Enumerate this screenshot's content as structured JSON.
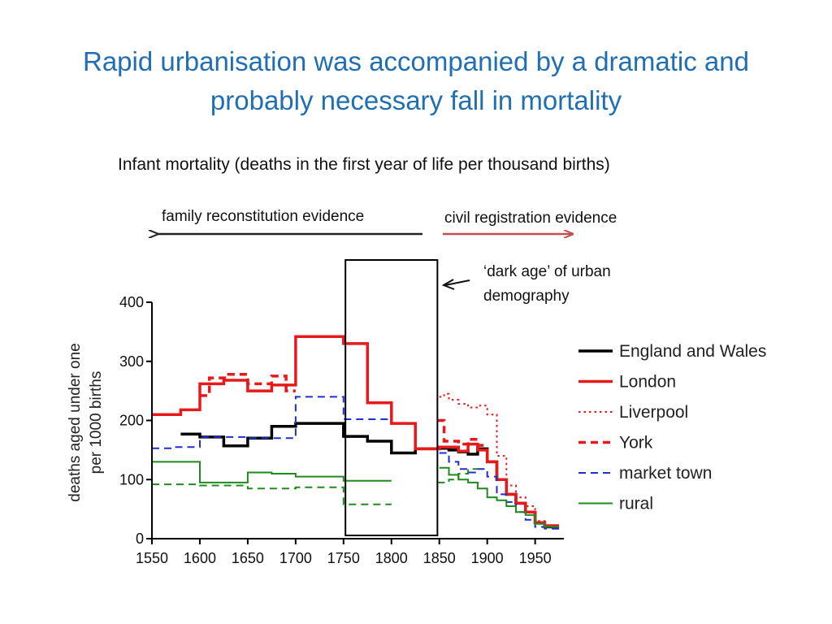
{
  "title": "Rapid urbanisation was accompanied by a dramatic and probably necessary fall in mortality",
  "title_line1": "Rapid urbanisation was accompanied by a dramatic and",
  "title_line2": "probably necessary fall in mortality",
  "subtitle": "Infant mortality (deaths in the first year of life per thousand births)",
  "evidence_left": "family reconstitution evidence",
  "evidence_right": "civil registration evidence",
  "dark_age_note_line1": "‘dark age’ of urban",
  "dark_age_note_line2": "demography",
  "colors": {
    "title": "#1F6FB2",
    "arrow_left": "#222222",
    "arrow_right": "#C0504D"
  },
  "chart_data": {
    "type": "line",
    "ylabel_line1": "deaths aged under one",
    "ylabel_line2": "per 1000 births",
    "xlim": [
      1550,
      1980
    ],
    "ylim": [
      0,
      400
    ],
    "x_ticks": [
      1550,
      1600,
      1650,
      1700,
      1750,
      1800,
      1850,
      1900,
      1950
    ],
    "y_ticks": [
      0,
      100,
      200,
      300,
      400
    ],
    "highlight_range": [
      1752,
      1848
    ],
    "legend_position": "right",
    "series": [
      {
        "name": "England and Wales",
        "color": "#000000",
        "dash": "solid",
        "width": 3.5,
        "points": [
          [
            1580,
            177
          ],
          [
            1600,
            177
          ],
          [
            1600,
            172
          ],
          [
            1625,
            172
          ],
          [
            1625,
            157
          ],
          [
            1650,
            157
          ],
          [
            1650,
            170
          ],
          [
            1675,
            170
          ],
          [
            1675,
            190
          ],
          [
            1700,
            190
          ],
          [
            1700,
            195
          ],
          [
            1750,
            195
          ],
          [
            1750,
            173
          ],
          [
            1775,
            173
          ],
          [
            1775,
            165
          ],
          [
            1800,
            165
          ],
          [
            1800,
            145
          ],
          [
            1825,
            145
          ],
          [
            1825,
            152
          ],
          [
            1850,
            152
          ],
          [
            1850,
            153
          ],
          [
            1860,
            153
          ],
          [
            1860,
            150
          ],
          [
            1870,
            150
          ],
          [
            1870,
            147
          ],
          [
            1880,
            147
          ],
          [
            1880,
            143
          ],
          [
            1890,
            143
          ],
          [
            1890,
            152
          ],
          [
            1900,
            152
          ],
          [
            1900,
            130
          ],
          [
            1910,
            130
          ],
          [
            1910,
            100
          ],
          [
            1920,
            100
          ],
          [
            1920,
            75
          ],
          [
            1930,
            75
          ],
          [
            1930,
            60
          ],
          [
            1940,
            60
          ],
          [
            1940,
            45
          ],
          [
            1950,
            45
          ],
          [
            1950,
            27
          ],
          [
            1960,
            27
          ],
          [
            1960,
            20
          ],
          [
            1970,
            20
          ],
          [
            1970,
            18
          ],
          [
            1975,
            18
          ]
        ]
      },
      {
        "name": "London",
        "color": "#E8191A",
        "dash": "solid",
        "width": 3.5,
        "points": [
          [
            1550,
            210
          ],
          [
            1580,
            210
          ],
          [
            1580,
            218
          ],
          [
            1600,
            218
          ],
          [
            1600,
            262
          ],
          [
            1625,
            262
          ],
          [
            1625,
            268
          ],
          [
            1650,
            268
          ],
          [
            1650,
            250
          ],
          [
            1675,
            250
          ],
          [
            1675,
            260
          ],
          [
            1700,
            260
          ],
          [
            1700,
            342
          ],
          [
            1750,
            342
          ],
          [
            1750,
            330
          ],
          [
            1775,
            330
          ],
          [
            1775,
            230
          ],
          [
            1800,
            230
          ],
          [
            1800,
            195
          ],
          [
            1825,
            195
          ],
          [
            1825,
            152
          ],
          [
            1850,
            152
          ],
          [
            1850,
            155
          ],
          [
            1870,
            155
          ],
          [
            1870,
            148
          ],
          [
            1880,
            148
          ],
          [
            1880,
            160
          ],
          [
            1890,
            160
          ],
          [
            1890,
            150
          ],
          [
            1900,
            150
          ],
          [
            1900,
            130
          ],
          [
            1910,
            130
          ],
          [
            1910,
            100
          ],
          [
            1920,
            100
          ],
          [
            1920,
            75
          ],
          [
            1930,
            75
          ],
          [
            1930,
            60
          ],
          [
            1940,
            60
          ],
          [
            1940,
            45
          ],
          [
            1950,
            45
          ],
          [
            1950,
            27
          ],
          [
            1960,
            27
          ],
          [
            1960,
            22
          ],
          [
            1975,
            22
          ]
        ]
      },
      {
        "name": "Liverpool",
        "color": "#E8191A",
        "dash": "dot",
        "width": 2,
        "points": [
          [
            1850,
            240
          ],
          [
            1855,
            240
          ],
          [
            1855,
            245
          ],
          [
            1860,
            245
          ],
          [
            1860,
            235
          ],
          [
            1870,
            235
          ],
          [
            1870,
            228
          ],
          [
            1880,
            228
          ],
          [
            1880,
            222
          ],
          [
            1890,
            222
          ],
          [
            1890,
            225
          ],
          [
            1900,
            225
          ],
          [
            1900,
            210
          ],
          [
            1910,
            210
          ],
          [
            1910,
            140
          ],
          [
            1920,
            140
          ],
          [
            1920,
            90
          ],
          [
            1930,
            90
          ],
          [
            1930,
            70
          ],
          [
            1940,
            70
          ],
          [
            1940,
            55
          ],
          [
            1950,
            55
          ],
          [
            1950,
            30
          ],
          [
            1960,
            30
          ],
          [
            1960,
            22
          ],
          [
            1975,
            22
          ]
        ]
      },
      {
        "name": "York",
        "color": "#E8191A",
        "dash": "dash",
        "width": 3.5,
        "points": [
          [
            1600,
            242
          ],
          [
            1610,
            242
          ],
          [
            1610,
            272
          ],
          [
            1630,
            272
          ],
          [
            1630,
            278
          ],
          [
            1650,
            278
          ],
          [
            1650,
            262
          ],
          [
            1675,
            262
          ],
          [
            1675,
            275
          ],
          [
            1690,
            275
          ],
          [
            1690,
            250
          ],
          [
            1700,
            250
          ]
        ]
      },
      {
        "name": "York",
        "color": "#E8191A",
        "dash": "dash",
        "width": 3.5,
        "points": [
          [
            1848,
            200
          ],
          [
            1855,
            200
          ],
          [
            1855,
            165
          ],
          [
            1870,
            165
          ],
          [
            1870,
            160
          ],
          [
            1880,
            160
          ],
          [
            1880,
            168
          ],
          [
            1890,
            168
          ],
          [
            1890,
            158
          ],
          [
            1900,
            158
          ]
        ]
      },
      {
        "name": "market town",
        "color": "#1F2FD0",
        "dash": "dash",
        "width": 2,
        "points": [
          [
            1550,
            153
          ],
          [
            1575,
            153
          ],
          [
            1575,
            155
          ],
          [
            1600,
            155
          ],
          [
            1600,
            172
          ],
          [
            1625,
            172
          ],
          [
            1625,
            172
          ],
          [
            1650,
            172
          ],
          [
            1650,
            170
          ],
          [
            1700,
            170
          ],
          [
            1700,
            240
          ],
          [
            1750,
            240
          ],
          [
            1750,
            202
          ],
          [
            1800,
            202
          ]
        ]
      },
      {
        "name": "market town",
        "color": "#1F2FD0",
        "dash": "dash",
        "width": 2,
        "points": [
          [
            1850,
            145
          ],
          [
            1860,
            145
          ],
          [
            1860,
            130
          ],
          [
            1870,
            130
          ],
          [
            1870,
            118
          ],
          [
            1880,
            118
          ],
          [
            1880,
            112
          ],
          [
            1890,
            112
          ],
          [
            1890,
            118
          ],
          [
            1900,
            118
          ],
          [
            1900,
            105
          ],
          [
            1910,
            105
          ],
          [
            1910,
            75
          ],
          [
            1920,
            75
          ],
          [
            1920,
            62
          ],
          [
            1930,
            62
          ],
          [
            1930,
            45
          ],
          [
            1940,
            45
          ],
          [
            1940,
            32
          ],
          [
            1950,
            32
          ],
          [
            1950,
            20
          ],
          [
            1960,
            20
          ],
          [
            1960,
            17
          ],
          [
            1975,
            17
          ]
        ]
      },
      {
        "name": "rural",
        "color": "#1E8B1E",
        "dash": "solid",
        "width": 2,
        "points": [
          [
            1550,
            130
          ],
          [
            1600,
            130
          ],
          [
            1600,
            95
          ],
          [
            1650,
            95
          ],
          [
            1650,
            112
          ],
          [
            1675,
            112
          ],
          [
            1675,
            110
          ],
          [
            1700,
            110
          ],
          [
            1700,
            105
          ],
          [
            1750,
            105
          ],
          [
            1750,
            98
          ],
          [
            1800,
            98
          ]
        ]
      },
      {
        "name": "rural",
        "color": "#1E8B1E",
        "dash": "dash",
        "width": 2,
        "points": [
          [
            1550,
            92
          ],
          [
            1575,
            92
          ],
          [
            1575,
            92
          ],
          [
            1600,
            92
          ],
          [
            1600,
            90
          ],
          [
            1650,
            90
          ],
          [
            1650,
            85
          ],
          [
            1700,
            85
          ],
          [
            1700,
            87
          ],
          [
            1750,
            87
          ],
          [
            1750,
            58
          ],
          [
            1800,
            58
          ]
        ]
      },
      {
        "name": "rural",
        "color": "#1E8B1E",
        "dash": "solid",
        "width": 2,
        "points": [
          [
            1850,
            120
          ],
          [
            1860,
            120
          ],
          [
            1860,
            108
          ],
          [
            1870,
            108
          ],
          [
            1870,
            100
          ],
          [
            1880,
            100
          ],
          [
            1880,
            95
          ],
          [
            1890,
            95
          ],
          [
            1890,
            85
          ],
          [
            1900,
            85
          ],
          [
            1900,
            70
          ],
          [
            1910,
            70
          ],
          [
            1910,
            65
          ],
          [
            1920,
            65
          ],
          [
            1920,
            55
          ],
          [
            1930,
            55
          ],
          [
            1930,
            45
          ],
          [
            1940,
            45
          ],
          [
            1940,
            40
          ],
          [
            1950,
            40
          ],
          [
            1950,
            25
          ],
          [
            1960,
            25
          ],
          [
            1960,
            20
          ],
          [
            1975,
            20
          ]
        ]
      },
      {
        "name": "rural",
        "color": "#1E8B1E",
        "dash": "dash",
        "width": 2,
        "points": [
          [
            1848,
            95
          ],
          [
            1860,
            95
          ],
          [
            1860,
            100
          ],
          [
            1870,
            100
          ],
          [
            1870,
            110
          ],
          [
            1880,
            110
          ],
          [
            1880,
            118
          ],
          [
            1890,
            118
          ]
        ]
      }
    ],
    "legend": [
      {
        "label": "England and Wales",
        "color": "#000000",
        "dash": "solid",
        "width": 3.5
      },
      {
        "label": "London",
        "color": "#E8191A",
        "dash": "solid",
        "width": 3.5
      },
      {
        "label": "Liverpool",
        "color": "#E8191A",
        "dash": "dot",
        "width": 2
      },
      {
        "label": "York",
        "color": "#E8191A",
        "dash": "dash",
        "width": 3.5
      },
      {
        "label": "market town",
        "color": "#1F2FD0",
        "dash": "dash",
        "width": 2
      },
      {
        "label": "rural",
        "color": "#1E8B1E",
        "dash": "solid",
        "width": 2
      }
    ]
  }
}
